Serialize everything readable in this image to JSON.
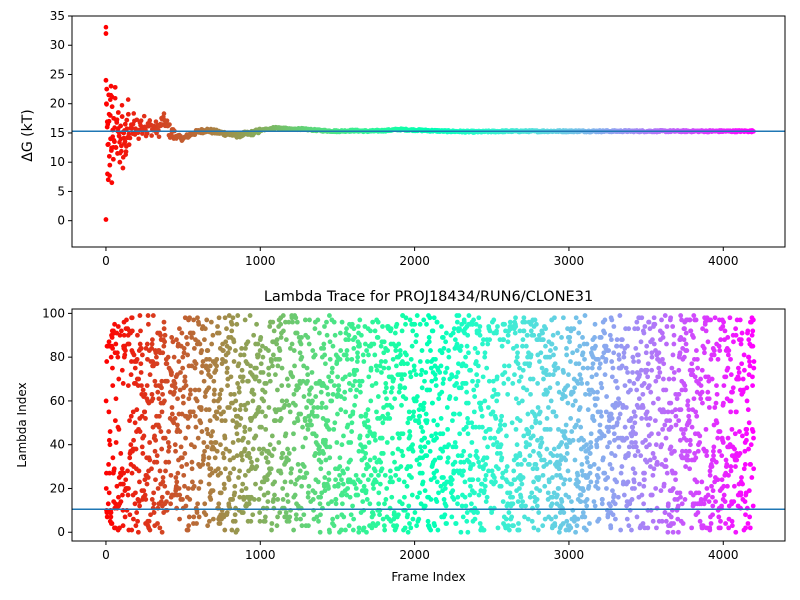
{
  "colors": {
    "reference_line": "#1f77b4",
    "frame": "#000000"
  },
  "colormap": "rainbow",
  "chart_data": [
    {
      "type": "scatter",
      "title": "",
      "xlabel": "",
      "ylabel": "ΔG (kT)",
      "xlim": [
        -220,
        4400
      ],
      "ylim": [
        -4.5,
        35
      ],
      "xticks": [
        "0",
        "1000",
        "2000",
        "3000",
        "4000"
      ],
      "yticks": [
        "0",
        "5",
        "10",
        "15",
        "20",
        "25",
        "30",
        "35"
      ],
      "xtick_values": [
        0,
        1000,
        2000,
        3000,
        4000
      ],
      "ytick_values": [
        0,
        5,
        10,
        15,
        20,
        25,
        30,
        35
      ],
      "hline": 15.3,
      "n_frames": 4200,
      "color_by": "frame index (rainbow, red at start to violet at end)",
      "early_points": [
        [
          0,
          32.0
        ],
        [
          0,
          0.2
        ],
        [
          0,
          24.0
        ],
        [
          3,
          20.0
        ],
        [
          5,
          22.5
        ],
        [
          8,
          16.0
        ],
        [
          10,
          8.0
        ],
        [
          12,
          13.0
        ],
        [
          15,
          7.0
        ],
        [
          18,
          21.5
        ],
        [
          20,
          17.0
        ],
        [
          22,
          11.0
        ],
        [
          25,
          9.5
        ],
        [
          28,
          18.0
        ],
        [
          30,
          14.0
        ],
        [
          33,
          23.0
        ],
        [
          35,
          12.0
        ],
        [
          38,
          6.5
        ],
        [
          40,
          19.5
        ],
        [
          44,
          15.5
        ],
        [
          48,
          10.5
        ],
        [
          50,
          17.5
        ],
        [
          55,
          13.5
        ],
        [
          60,
          22.8
        ],
        [
          65,
          12.5
        ],
        [
          70,
          16.8
        ],
        [
          75,
          11.5
        ],
        [
          80,
          18.5
        ],
        [
          85,
          14.5
        ],
        [
          90,
          10.0
        ],
        [
          95,
          16.2
        ],
        [
          100,
          12.8
        ],
        [
          105,
          17.8
        ],
        [
          110,
          9.0
        ],
        [
          115,
          15.0
        ],
        [
          120,
          13.2
        ],
        [
          125,
          16.5
        ],
        [
          130,
          11.8
        ],
        [
          135,
          17.2
        ],
        [
          140,
          14.2
        ],
        [
          145,
          18.2
        ],
        [
          150,
          13.0
        ],
        [
          160,
          16.0
        ],
        [
          170,
          14.8
        ],
        [
          180,
          17.5
        ],
        [
          190,
          15.2
        ],
        [
          200,
          16.8
        ],
        [
          210,
          14.0
        ],
        [
          220,
          17.0
        ],
        [
          230,
          15.8
        ],
        [
          240,
          16.2
        ],
        [
          250,
          17.8
        ],
        [
          260,
          15.0
        ],
        [
          280,
          16.5
        ],
        [
          300,
          15.5
        ],
        [
          320,
          16.0
        ],
        [
          340,
          15.2
        ],
        [
          360,
          16.8
        ],
        [
          380,
          17.2
        ],
        [
          400,
          16.0
        ],
        [
          420,
          15.0
        ],
        [
          450,
          14.5
        ],
        [
          480,
          14.2
        ],
        [
          500,
          14.0
        ],
        [
          550,
          14.8
        ],
        [
          600,
          15.2
        ],
        [
          650,
          15.5
        ],
        [
          700,
          15.2
        ],
        [
          750,
          15.0
        ],
        [
          800,
          14.8
        ],
        [
          850,
          14.6
        ],
        [
          900,
          14.8
        ],
        [
          950,
          15.0
        ],
        [
          1000,
          15.4
        ],
        [
          1050,
          15.7
        ],
        [
          1100,
          15.9
        ],
        [
          1150,
          15.8
        ],
        [
          1200,
          15.6
        ],
        [
          1250,
          15.7
        ],
        [
          1300,
          15.6
        ],
        [
          1400,
          15.4
        ],
        [
          1500,
          15.3
        ],
        [
          1600,
          15.4
        ],
        [
          1700,
          15.3
        ],
        [
          1800,
          15.4
        ],
        [
          1900,
          15.6
        ],
        [
          2000,
          15.5
        ],
        [
          2200,
          15.3
        ],
        [
          2400,
          15.2
        ],
        [
          2600,
          15.3
        ],
        [
          2800,
          15.3
        ],
        [
          3000,
          15.3
        ],
        [
          3200,
          15.3
        ],
        [
          3400,
          15.3
        ],
        [
          3600,
          15.3
        ],
        [
          3800,
          15.3
        ],
        [
          4000,
          15.3
        ],
        [
          4190,
          15.3
        ]
      ]
    },
    {
      "type": "scatter",
      "title": "Lambda Trace for PROJ18434/RUN6/CLONE31",
      "xlabel": "Frame Index",
      "ylabel": "Lambda Index",
      "xlim": [
        -220,
        4400
      ],
      "ylim": [
        -4,
        102
      ],
      "xticks": [
        "0",
        "1000",
        "2000",
        "3000",
        "4000"
      ],
      "yticks": [
        "0",
        "20",
        "40",
        "60",
        "80",
        "100"
      ],
      "xtick_values": [
        0,
        1000,
        2000,
        3000,
        4000
      ],
      "ytick_values": [
        0,
        20,
        40,
        60,
        80,
        100
      ],
      "hline": 10.5,
      "n_frames": 4200,
      "lambda_range": [
        0,
        99
      ],
      "color_by": "frame index (rainbow, red at start to violet at end)",
      "distribution": "lambda index values scattered roughly uniformly across 0-99 for every frame; early frames (0-150) concentrated more at high (>80) and low (<30) lambda"
    }
  ]
}
